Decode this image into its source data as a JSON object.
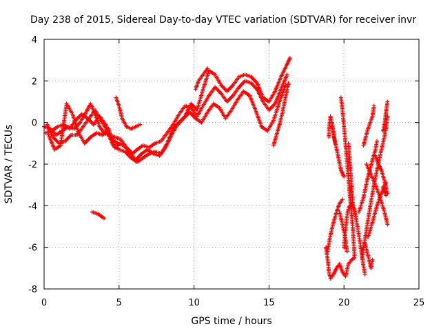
{
  "chart_data": {
    "type": "scatter",
    "title": "Day 238 of 2015, Sidereal Day-to-day VTEC variation (SDTVAR) for receiver invr",
    "xlabel": "GPS time / hours",
    "ylabel": "SDTVAR / TECUs",
    "xlim": [
      0,
      25
    ],
    "ylim": [
      -8,
      4
    ],
    "xticks": [
      0,
      5,
      10,
      15,
      20,
      25
    ],
    "yticks": [
      -8,
      -6,
      -4,
      -2,
      0,
      2,
      4
    ],
    "grid": true,
    "marker": "+",
    "color": "#ff0000",
    "series": [
      {
        "tracks": [
          [
            [
              0.0,
              -0.2
            ],
            [
              0.4,
              -0.3
            ],
            [
              0.8,
              -0.6
            ],
            [
              1.2,
              -0.4
            ],
            [
              1.6,
              -0.2
            ],
            [
              2.0,
              -0.3
            ],
            [
              2.4,
              0.0
            ],
            [
              2.8,
              0.5
            ],
            [
              3.1,
              0.9
            ],
            [
              3.4,
              0.4
            ],
            [
              3.7,
              -0.2
            ],
            [
              4.0,
              -0.5
            ],
            [
              4.3,
              -0.6
            ],
            [
              4.7,
              -0.7
            ],
            [
              5.1,
              -0.8
            ],
            [
              5.5,
              -1.2
            ],
            [
              5.9,
              -1.5
            ],
            [
              6.2,
              -1.3
            ],
            [
              6.6,
              -1.1
            ],
            [
              7.0,
              -1.2
            ],
            [
              7.4,
              -1.0
            ],
            [
              7.8,
              -0.9
            ],
            [
              8.2,
              -0.5
            ],
            [
              8.6,
              -0.1
            ],
            [
              9.0,
              0.4
            ],
            [
              9.4,
              0.8
            ],
            [
              9.8,
              0.7
            ],
            [
              10.2,
              0.3
            ],
            [
              10.6,
              0.8
            ],
            [
              11.0,
              1.3
            ],
            [
              11.4,
              1.7
            ],
            [
              11.8,
              1.4
            ],
            [
              12.2,
              1.0
            ],
            [
              12.6,
              1.3
            ],
            [
              13.0,
              1.7
            ],
            [
              13.4,
              2.0
            ],
            [
              13.8,
              1.9
            ],
            [
              14.2,
              1.6
            ],
            [
              14.6,
              1.0
            ],
            [
              15.0,
              0.6
            ],
            [
              15.4,
              0.9
            ],
            [
              15.8,
              1.6
            ],
            [
              16.2,
              2.3
            ]
          ],
          [
            [
              0.1,
              -0.5
            ],
            [
              0.5,
              -0.4
            ],
            [
              0.9,
              -0.2
            ],
            [
              1.3,
              -0.1
            ],
            [
              1.7,
              -0.3
            ],
            [
              2.1,
              0.1
            ],
            [
              2.5,
              0.4
            ],
            [
              2.9,
              0.2
            ],
            [
              3.3,
              -0.1
            ],
            [
              3.7,
              0.3
            ],
            [
              4.1,
              -0.1
            ],
            [
              4.5,
              -0.8
            ],
            [
              4.9,
              -1.0
            ],
            [
              5.3,
              -1.1
            ],
            [
              5.7,
              -1.4
            ],
            [
              6.1,
              -1.8
            ],
            [
              6.5,
              -1.5
            ],
            [
              6.9,
              -1.3
            ],
            [
              7.3,
              -1.5
            ],
            [
              7.7,
              -1.6
            ],
            [
              8.1,
              -1.2
            ],
            [
              8.5,
              -0.6
            ],
            [
              8.9,
              -0.1
            ],
            [
              9.3,
              0.2
            ],
            [
              9.7,
              0.5
            ],
            [
              10.1,
              0.2
            ],
            [
              10.5,
              0.0
            ],
            [
              10.9,
              0.5
            ],
            [
              11.3,
              0.9
            ],
            [
              11.7,
              0.7
            ],
            [
              12.1,
              0.2
            ],
            [
              12.5,
              0.6
            ],
            [
              12.9,
              1.1
            ],
            [
              13.3,
              1.5
            ],
            [
              13.7,
              1.3
            ],
            [
              14.1,
              0.6
            ],
            [
              14.5,
              -0.2
            ],
            [
              14.9,
              -0.4
            ],
            [
              15.3,
              0.1
            ],
            [
              15.7,
              1.0
            ],
            [
              16.1,
              1.8
            ]
          ],
          [
            [
              0.2,
              -0.1
            ],
            [
              0.6,
              -0.7
            ],
            [
              1.0,
              -1.0
            ],
            [
              1.4,
              -0.9
            ],
            [
              1.8,
              -0.6
            ],
            [
              2.2,
              -0.6
            ],
            [
              2.6,
              -0.2
            ],
            [
              3.0,
              0.2
            ],
            [
              3.4,
              0.6
            ],
            [
              3.8,
              0.1
            ],
            [
              4.2,
              -0.4
            ],
            [
              4.6,
              -1.1
            ],
            [
              5.0,
              -1.3
            ],
            [
              5.4,
              -1.4
            ],
            [
              5.8,
              -1.7
            ],
            [
              6.2,
              -1.9
            ],
            [
              6.6,
              -1.7
            ],
            [
              7.0,
              -1.5
            ],
            [
              7.4,
              -1.4
            ],
            [
              7.8,
              -1.5
            ],
            [
              8.2,
              -1.0
            ],
            [
              8.6,
              -0.3
            ],
            [
              9.0,
              0.0
            ],
            [
              9.4,
              0.3
            ],
            [
              9.8,
              0.9
            ],
            [
              10.2,
              0.6
            ],
            [
              10.6,
              1.6
            ],
            [
              11.0,
              2.5
            ],
            [
              11.4,
              2.3
            ],
            [
              11.8,
              1.8
            ],
            [
              12.2,
              1.5
            ],
            [
              12.6,
              1.8
            ],
            [
              13.0,
              2.2
            ],
            [
              13.4,
              2.3
            ],
            [
              13.8,
              2.2
            ],
            [
              14.2,
              1.9
            ],
            [
              14.6,
              1.2
            ],
            [
              15.0,
              1.0
            ],
            [
              15.4,
              1.5
            ],
            [
              15.8,
              2.2
            ],
            [
              16.2,
              2.8
            ],
            [
              16.4,
              3.1
            ]
          ],
          [
            [
              0.3,
              -0.6
            ],
            [
              0.7,
              -1.3
            ],
            [
              1.1,
              -1.1
            ],
            [
              1.5,
              0.9
            ],
            [
              1.9,
              0.4
            ],
            [
              2.3,
              -0.5
            ],
            [
              2.7,
              -1.0
            ],
            [
              3.1,
              -0.7
            ],
            [
              3.5,
              -0.5
            ],
            [
              3.9,
              -0.6
            ],
            [
              4.3,
              -0.3
            ],
            [
              4.7,
              -1.2
            ],
            [
              5.1,
              -1.0
            ]
          ],
          [
            [
              4.8,
              1.2
            ],
            [
              5.0,
              0.8
            ],
            [
              5.2,
              0.2
            ],
            [
              5.5,
              -0.2
            ],
            [
              5.8,
              -0.3
            ],
            [
              6.1,
              -0.2
            ],
            [
              6.4,
              -0.1
            ]
          ],
          [
            [
              10.1,
              1.6
            ],
            [
              10.3,
              2.0
            ],
            [
              10.5,
              2.2
            ],
            [
              10.7,
              2.4
            ],
            [
              10.9,
              2.6
            ]
          ],
          [
            [
              15.3,
              -1.1
            ],
            [
              15.5,
              -0.6
            ],
            [
              15.7,
              -0.1
            ],
            [
              15.9,
              0.5
            ],
            [
              16.1,
              1.2
            ],
            [
              16.3,
              1.9
            ]
          ],
          [
            [
              3.2,
              -4.3
            ],
            [
              3.6,
              -4.4
            ],
            [
              4.0,
              -4.6
            ]
          ],
          [
            [
              18.8,
              -6.0
            ],
            [
              18.9,
              -6.5
            ],
            [
              19.0,
              -7.2
            ],
            [
              19.1,
              -7.5
            ],
            [
              19.3,
              -7.3
            ],
            [
              19.5,
              -7.0
            ],
            [
              19.7,
              -6.8
            ],
            [
              19.9,
              -7.2
            ],
            [
              20.1,
              -7.4
            ],
            [
              20.3,
              -6.8
            ],
            [
              20.5,
              -6.6
            ],
            [
              20.7,
              -6.5
            ]
          ],
          [
            [
              18.9,
              -6.2
            ],
            [
              19.1,
              -5.4
            ],
            [
              19.3,
              -4.8
            ],
            [
              19.5,
              -4.3
            ],
            [
              19.7,
              -3.9
            ],
            [
              19.9,
              -3.7
            ]
          ],
          [
            [
              19.4,
              -1.0
            ],
            [
              19.3,
              -0.5
            ],
            [
              19.2,
              0.0
            ],
            [
              19.1,
              0.3
            ],
            [
              19.0,
              -0.3
            ],
            [
              19.0,
              -0.7
            ]
          ],
          [
            [
              19.2,
              -0.2
            ],
            [
              19.4,
              -0.9
            ],
            [
              19.6,
              -1.6
            ],
            [
              19.8,
              -2.3
            ],
            [
              20.0,
              -2.6
            ]
          ],
          [
            [
              19.8,
              1.2
            ],
            [
              19.9,
              0.6
            ],
            [
              20.0,
              -0.2
            ],
            [
              20.1,
              -1.0
            ],
            [
              20.2,
              -1.8
            ],
            [
              20.3,
              -2.7
            ],
            [
              20.4,
              -3.6
            ],
            [
              20.5,
              -4.3
            ],
            [
              20.6,
              -5.2
            ],
            [
              20.7,
              -6.4
            ]
          ],
          [
            [
              20.0,
              -6.0
            ],
            [
              20.1,
              -5.2
            ],
            [
              20.2,
              -4.5
            ],
            [
              20.3,
              -4.1
            ],
            [
              20.5,
              -3.9
            ],
            [
              20.7,
              -4.2
            ],
            [
              20.9,
              -5.0
            ],
            [
              21.1,
              -5.9
            ],
            [
              21.3,
              -6.9
            ],
            [
              21.4,
              -7.3
            ]
          ],
          [
            [
              19.7,
              -4.3
            ],
            [
              19.9,
              -4.9
            ],
            [
              20.1,
              -5.6
            ],
            [
              20.2,
              -6.2
            ]
          ],
          [
            [
              20.3,
              -1.0
            ],
            [
              20.4,
              -2.0
            ],
            [
              20.5,
              -3.0
            ],
            [
              20.6,
              -4.0
            ],
            [
              20.8,
              -4.5
            ]
          ],
          [
            [
              21.2,
              -6.5
            ],
            [
              21.4,
              -5.6
            ],
            [
              21.6,
              -4.7
            ],
            [
              21.8,
              -3.8
            ],
            [
              22.0,
              -3.0
            ],
            [
              22.2,
              -2.3
            ],
            [
              22.4,
              -1.6
            ],
            [
              22.6,
              -1.0
            ],
            [
              22.8,
              -0.3
            ],
            [
              22.9,
              0.3
            ]
          ],
          [
            [
              21.0,
              -4.3
            ],
            [
              21.3,
              -3.6
            ],
            [
              21.6,
              -2.6
            ],
            [
              21.9,
              -1.8
            ],
            [
              22.1,
              -1.3
            ],
            [
              22.2,
              -0.9
            ]
          ],
          [
            [
              21.3,
              -1.1
            ],
            [
              21.6,
              -0.3
            ],
            [
              21.9,
              0.3
            ],
            [
              22.0,
              0.8
            ]
          ],
          [
            [
              21.5,
              -2.0
            ],
            [
              21.8,
              -2.5
            ],
            [
              22.1,
              -3.0
            ],
            [
              22.4,
              -3.6
            ],
            [
              22.7,
              -4.3
            ],
            [
              22.9,
              -4.9
            ]
          ],
          [
            [
              21.6,
              -5.5
            ],
            [
              21.9,
              -4.8
            ],
            [
              22.2,
              -4.0
            ],
            [
              22.5,
              -3.4
            ],
            [
              22.8,
              -2.9
            ]
          ],
          [
            [
              21.4,
              -5.8
            ],
            [
              21.6,
              -6.4
            ],
            [
              21.8,
              -7.0
            ],
            [
              21.9,
              -6.6
            ]
          ],
          [
            [
              22.1,
              -1.6
            ],
            [
              22.3,
              -2.0
            ],
            [
              22.5,
              -2.3
            ],
            [
              22.7,
              -2.8
            ],
            [
              22.9,
              -3.4
            ]
          ],
          [
            [
              22.6,
              -0.4
            ],
            [
              22.7,
              -0.1
            ],
            [
              22.8,
              0.5
            ],
            [
              22.9,
              1.0
            ]
          ],
          [
            [
              22.6,
              -3.1
            ],
            [
              22.7,
              -3.3
            ],
            [
              22.8,
              -3.5
            ]
          ]
        ]
      }
    ]
  }
}
